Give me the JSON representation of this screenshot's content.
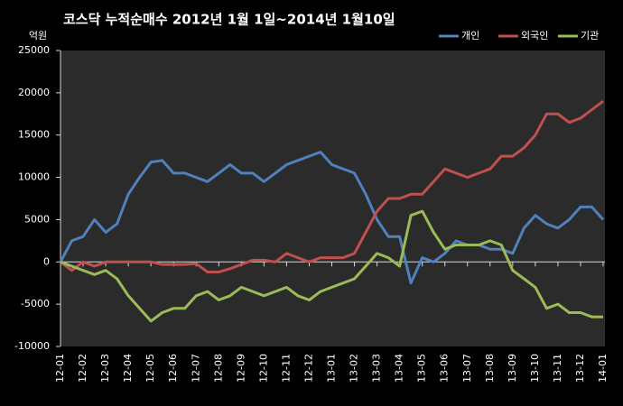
{
  "chart_data": {
    "type": "line",
    "title": "코스닥  누적순매수 2012년 1월 1일~2014년 1월10일",
    "ylabel": "억원",
    "categories": [
      "12-01",
      null,
      "12-02",
      null,
      "12-03",
      null,
      "12-04",
      null,
      "12-05",
      null,
      "12-06",
      null,
      "12-07",
      null,
      "12-08",
      null,
      "12-09",
      null,
      "12-10",
      null,
      "12-11",
      null,
      "12-12",
      null,
      "13-01",
      null,
      "13-02",
      null,
      "13-03",
      null,
      "13-04",
      null,
      "13-05",
      null,
      "13-06",
      null,
      "13-07",
      null,
      "13-08",
      null,
      "13-09",
      null,
      "13-10",
      null,
      "13-11",
      null,
      "13-12",
      null,
      "14-01"
    ],
    "series": [
      {
        "name": "개인",
        "color": "#4f81bd",
        "values": [
          0,
          2500,
          3000,
          5000,
          3500,
          4500,
          8000,
          10000,
          11800,
          12000,
          10500,
          10500,
          10000,
          9500,
          10500,
          11500,
          10500,
          10500,
          9500,
          10500,
          11500,
          12000,
          12500,
          13000,
          11500,
          11000,
          10500,
          8000,
          5000,
          3000,
          3000,
          -2500,
          500,
          0,
          1000,
          2500,
          2000,
          2000,
          1500,
          1500,
          1000,
          4000,
          5500,
          4500,
          4000,
          5000,
          6500,
          6500,
          5000
        ]
      },
      {
        "name": "외국인",
        "color": "#c0504d",
        "values": [
          0,
          -1000,
          0,
          -500,
          0,
          0,
          0,
          0,
          0,
          -300,
          -300,
          -300,
          -200,
          -1200,
          -1200,
          -800,
          -300,
          200,
          200,
          0,
          1000,
          500,
          0,
          500,
          500,
          500,
          1000,
          3500,
          6000,
          7500,
          7500,
          8000,
          8000,
          9500,
          11000,
          10500,
          10000,
          10500,
          11000,
          12500,
          12500,
          13500,
          15000,
          17500,
          17500,
          16500,
          17000,
          18000,
          19000
        ]
      },
      {
        "name": "기관",
        "color": "#9bbb59",
        "values": [
          0,
          -500,
          -1000,
          -1500,
          -1000,
          -2000,
          -4000,
          -5500,
          -7000,
          -6000,
          -5500,
          -5500,
          -4000,
          -3500,
          -4500,
          -4000,
          -3000,
          -3500,
          -4000,
          -3500,
          -3000,
          -4000,
          -4500,
          -3500,
          -3000,
          -2500,
          -2000,
          -500,
          1000,
          500,
          -500,
          5500,
          6000,
          3500,
          1500,
          2000,
          2000,
          2000,
          2500,
          2000,
          -1000,
          -2000,
          -3000,
          -5500,
          -5000,
          -6000,
          -6000,
          -6500,
          -6500
        ]
      }
    ],
    "ylim": [
      -10000,
      25000
    ],
    "yticks": [
      -10000,
      -5000,
      0,
      5000,
      10000,
      15000,
      20000,
      25000
    ],
    "grid": false,
    "legend": "top-right"
  }
}
